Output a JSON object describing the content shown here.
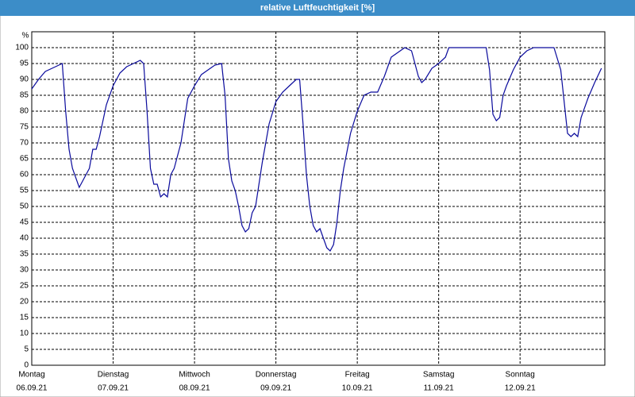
{
  "chart_data": {
    "type": "line",
    "title": "relative Luftfeuchtigkeit [%]",
    "ylabel": "%",
    "xlim": [
      0,
      169
    ],
    "ylim": [
      0,
      105
    ],
    "yticks": [
      0,
      5,
      10,
      15,
      20,
      25,
      30,
      35,
      40,
      45,
      50,
      55,
      60,
      65,
      70,
      75,
      80,
      85,
      90,
      95,
      100
    ],
    "xticks": [
      {
        "value": 0,
        "label": [
          "Montag",
          "06.09.21"
        ]
      },
      {
        "value": 24,
        "label": [
          "Dienstag",
          "07.09.21"
        ]
      },
      {
        "value": 48,
        "label": [
          "Mittwoch",
          "08.09.21"
        ]
      },
      {
        "value": 72,
        "label": [
          "Donnerstag",
          "09.09.21"
        ]
      },
      {
        "value": 96,
        "label": [
          "Freitag",
          "10.09.21"
        ]
      },
      {
        "value": 120,
        "label": [
          "Samstag",
          "11.09.21"
        ]
      },
      {
        "value": 144,
        "label": [
          "Sonntag",
          "12.09.21"
        ]
      }
    ],
    "grid": true,
    "series": [
      {
        "color": "#0a0a9c",
        "x": [
          0,
          2,
          4,
          6,
          8,
          9,
          10,
          11,
          12,
          14,
          16,
          17,
          18,
          19,
          20,
          22,
          24,
          26,
          28,
          30,
          32,
          33,
          34,
          35,
          36,
          37,
          38,
          39,
          40,
          41,
          42,
          44,
          46,
          48,
          50,
          52,
          54,
          56,
          57,
          58,
          59,
          60,
          61,
          62,
          63,
          64,
          65,
          66,
          68,
          70,
          72,
          74,
          76,
          78,
          79,
          80,
          81,
          82,
          83,
          84,
          85,
          86,
          87,
          88,
          89,
          90,
          91,
          92,
          94,
          96,
          98,
          100,
          102,
          104,
          106,
          108,
          110,
          112,
          113,
          114,
          115,
          116,
          118,
          120,
          122,
          123,
          126,
          130,
          134,
          135,
          136,
          137,
          138,
          139,
          140,
          142,
          144,
          146,
          148,
          150,
          154,
          156,
          157,
          158,
          159,
          160,
          161,
          162,
          164,
          166,
          168
        ],
        "values": [
          87,
          90,
          92.5,
          93.5,
          94.5,
          95,
          80,
          68,
          62,
          56,
          60,
          62,
          68,
          68,
          72,
          82,
          88,
          92,
          94,
          95,
          96,
          95,
          80,
          62,
          57,
          57,
          53,
          54,
          53,
          60,
          62,
          70,
          84,
          88,
          91.5,
          93,
          94.5,
          95,
          85,
          65,
          58,
          55,
          50,
          44,
          42,
          43,
          48,
          50,
          64,
          76,
          83,
          86,
          88,
          90,
          90,
          76,
          60,
          50,
          44,
          42,
          43,
          40,
          37,
          36,
          38,
          45,
          55,
          62,
          73,
          80,
          85,
          86,
          86,
          91,
          97,
          98.5,
          100,
          99,
          95,
          91,
          89,
          90,
          93.5,
          95,
          97,
          100,
          100,
          100,
          100,
          93,
          79,
          77,
          78,
          85,
          88,
          93,
          97,
          99,
          100,
          100,
          100,
          93,
          83,
          73,
          72,
          73,
          72,
          78,
          84,
          89,
          93.5
        ]
      }
    ]
  }
}
